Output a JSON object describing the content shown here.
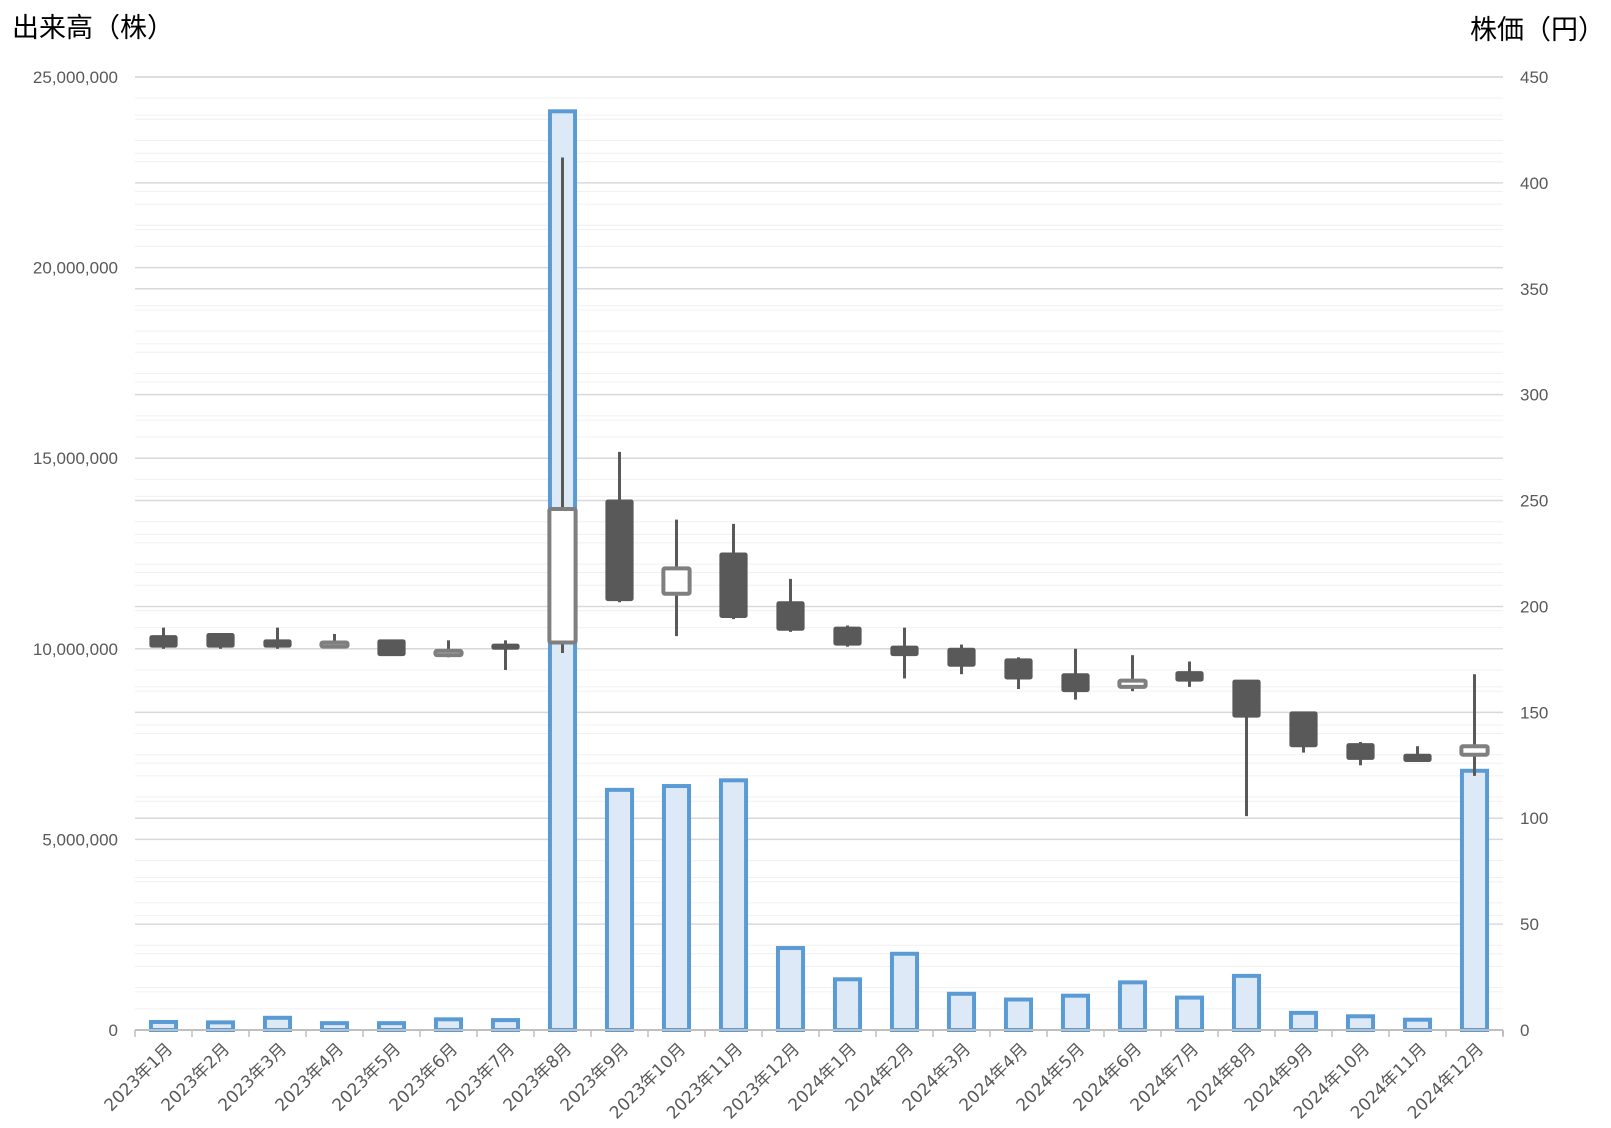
{
  "chart_data": {
    "type": "bar",
    "combo": "volume-bar + candlestick",
    "ylabel": "出来高（株）",
    "y2label": "株価（円）",
    "ylim": [
      0,
      25000000
    ],
    "y2lim": [
      0,
      450
    ],
    "ytick_labels": [
      "0",
      "5,000,000",
      "10,000,000",
      "15,000,000",
      "20,000,000",
      "25,000,000"
    ],
    "y2tick_labels": [
      "0",
      "50",
      "100",
      "150",
      "200",
      "250",
      "300",
      "350",
      "400",
      "450"
    ],
    "grid": true,
    "categories": [
      "2023年1月",
      "2023年2月",
      "2023年3月",
      "2023年4月",
      "2023年5月",
      "2023年6月",
      "2023年7月",
      "2023年8月",
      "2023年9月",
      "2023年10月",
      "2023年11月",
      "2023年12月",
      "2024年1月",
      "2024年2月",
      "2024年3月",
      "2024年4月",
      "2024年5月",
      "2024年6月",
      "2024年7月",
      "2024年8月",
      "2024年9月",
      "2024年10月",
      "2024年11月",
      "2024年12月"
    ],
    "volume": [
      210000,
      200000,
      320000,
      180000,
      180000,
      280000,
      260000,
      24100000,
      6300000,
      6400000,
      6550000,
      2150000,
      1330000,
      2000000,
      950000,
      800000,
      900000,
      1250000,
      850000,
      1420000,
      450000,
      360000,
      270000,
      6800000
    ],
    "ohlc": [
      {
        "open": 186,
        "high": 190,
        "low": 180,
        "close": 181
      },
      {
        "open": 187,
        "high": 187,
        "low": 180,
        "close": 181
      },
      {
        "open": 184,
        "high": 190,
        "low": 180,
        "close": 181
      },
      {
        "open": 181,
        "high": 187,
        "low": 181,
        "close": 183
      },
      {
        "open": 184,
        "high": 184,
        "low": 177,
        "close": 177
      },
      {
        "open": 177,
        "high": 184,
        "low": 176,
        "close": 179
      },
      {
        "open": 182,
        "high": 184,
        "low": 170,
        "close": 180
      },
      {
        "open": 183,
        "high": 412,
        "low": 178,
        "close": 246
      },
      {
        "open": 250,
        "high": 273,
        "low": 202,
        "close": 203
      },
      {
        "open": 206,
        "high": 241,
        "low": 186,
        "close": 218
      },
      {
        "open": 225,
        "high": 239,
        "low": 194,
        "close": 195
      },
      {
        "open": 202,
        "high": 213,
        "low": 188,
        "close": 189
      },
      {
        "open": 190,
        "high": 191,
        "low": 181,
        "close": 182
      },
      {
        "open": 181,
        "high": 190,
        "low": 166,
        "close": 177
      },
      {
        "open": 180,
        "high": 182,
        "low": 168,
        "close": 172
      },
      {
        "open": 175,
        "high": 176,
        "low": 161,
        "close": 166
      },
      {
        "open": 168,
        "high": 180,
        "low": 156,
        "close": 160
      },
      {
        "open": 162,
        "high": 177,
        "low": 160,
        "close": 165
      },
      {
        "open": 169,
        "high": 174,
        "low": 162,
        "close": 165
      },
      {
        "open": 165,
        "high": 165,
        "low": 101,
        "close": 148
      },
      {
        "open": 150,
        "high": 150,
        "low": 131,
        "close": 134
      },
      {
        "open": 135,
        "high": 136,
        "low": 125,
        "close": 128
      },
      {
        "open": 130,
        "high": 134,
        "low": 127,
        "close": 127
      },
      {
        "open": 130,
        "high": 168,
        "low": 120,
        "close": 134
      }
    ]
  },
  "colors": {
    "volume_fill": "#dee9f7",
    "volume_border": "#5b9bd5",
    "candle_down": "#595959",
    "candle_up_border": "#7f7f7f",
    "candle_up_fill": "#ffffff",
    "grid_major": "#d9d9d9",
    "grid_minor": "#f0f0f0"
  }
}
